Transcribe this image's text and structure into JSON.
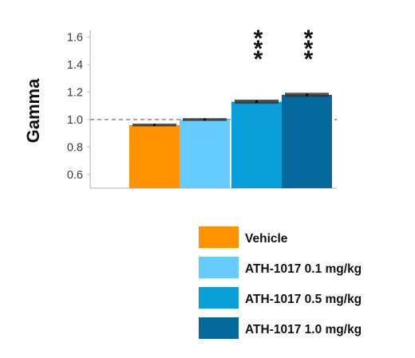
{
  "chart_data": {
    "type": "bar",
    "title": "",
    "xlabel": "",
    "ylabel": "Gamma",
    "ylim": [
      0.5,
      1.65
    ],
    "yticks": [
      0.6,
      0.8,
      1.0,
      1.2,
      1.4,
      1.6
    ],
    "ytick_labels": [
      "0.6",
      "0.8",
      "1.0",
      "1.2",
      "1.4",
      "1.6"
    ],
    "reference_line": 1.0,
    "grid": false,
    "legend_position": "bottom-right",
    "series": [
      {
        "name": "Vehicle",
        "value": 0.96,
        "error": 0.01,
        "color": "#FF9200",
        "annotation": ""
      },
      {
        "name": "ATH-1017 0.1 mg/kg",
        "value": 1.0,
        "error": 0.01,
        "color": "#66CCFF",
        "annotation": ""
      },
      {
        "name": "ATH-1017 0.5 mg/kg",
        "value": 1.13,
        "error": 0.015,
        "color": "#0A9FD8",
        "annotation": "***"
      },
      {
        "name": "ATH-1017 1.0 mg/kg",
        "value": 1.18,
        "error": 0.015,
        "color": "#05699E",
        "annotation": "***"
      }
    ]
  }
}
